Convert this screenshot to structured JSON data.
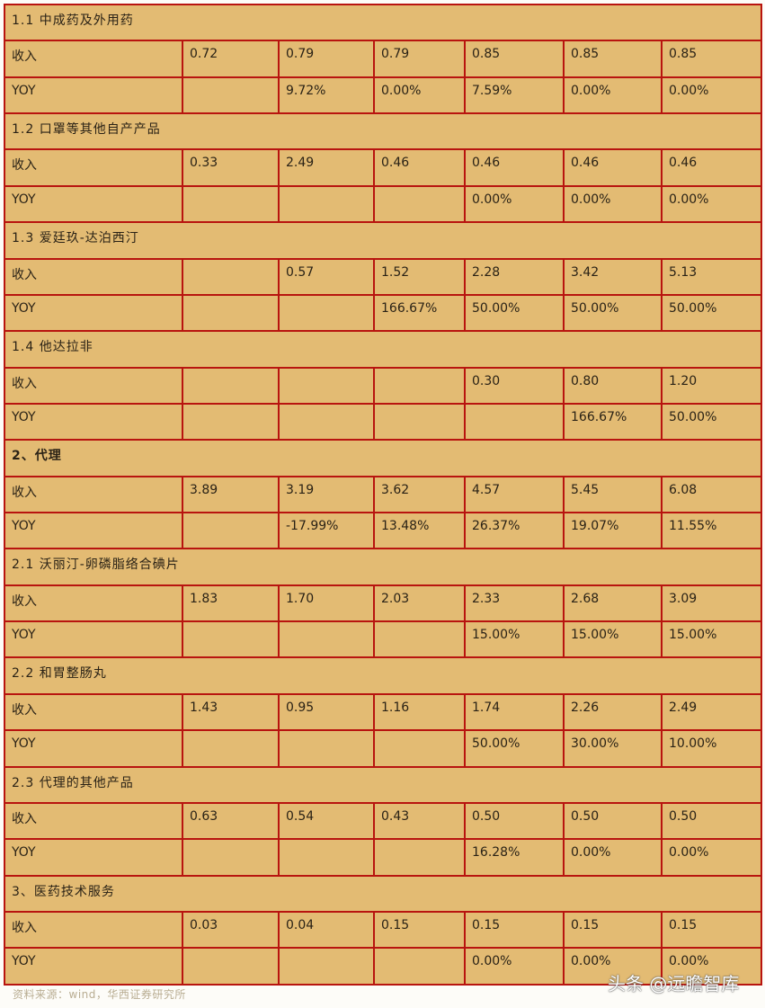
{
  "colors": {
    "cell_background": "#e3bb73",
    "border": "#b8140f"
  },
  "sections": [
    {
      "title": "1.1 中成药及外用药",
      "bold": false,
      "rows": [
        {
          "label": "收入",
          "values": [
            "0.72",
            "0.79",
            "0.79",
            "0.85",
            "0.85",
            "0.85"
          ]
        },
        {
          "label": "YOY",
          "values": [
            "",
            "9.72%",
            "0.00%",
            "7.59%",
            "0.00%",
            "0.00%"
          ]
        }
      ]
    },
    {
      "title": "1.2 口罩等其他自产产品",
      "bold": false,
      "rows": [
        {
          "label": "收入",
          "values": [
            "0.33",
            "2.49",
            "0.46",
            "0.46",
            "0.46",
            "0.46"
          ]
        },
        {
          "label": "YOY",
          "values": [
            "",
            "",
            "",
            "0.00%",
            "0.00%",
            "0.00%"
          ]
        }
      ]
    },
    {
      "title": "1.3 爱廷玖-达泊西汀",
      "bold": false,
      "rows": [
        {
          "label": "收入",
          "values": [
            "",
            "0.57",
            "1.52",
            "2.28",
            "3.42",
            "5.13"
          ]
        },
        {
          "label": "YOY",
          "values": [
            "",
            "",
            "166.67%",
            "50.00%",
            "50.00%",
            "50.00%"
          ]
        }
      ]
    },
    {
      "title": "1.4 他达拉非",
      "bold": false,
      "rows": [
        {
          "label": "收入",
          "values": [
            "",
            "",
            "",
            "0.30",
            "0.80",
            "1.20"
          ]
        },
        {
          "label": "YOY",
          "values": [
            "",
            "",
            "",
            "",
            "166.67%",
            "50.00%"
          ]
        }
      ]
    },
    {
      "title": "2、代理",
      "bold": true,
      "rows": [
        {
          "label": "收入",
          "values": [
            "3.89",
            "3.19",
            "3.62",
            "4.57",
            "5.45",
            "6.08"
          ]
        },
        {
          "label": "YOY",
          "values": [
            "",
            "-17.99%",
            "13.48%",
            "26.37%",
            "19.07%",
            "11.55%"
          ]
        }
      ]
    },
    {
      "title": "2.1 沃丽汀-卵磷脂络合碘片",
      "bold": false,
      "rows": [
        {
          "label": "收入",
          "values": [
            "1.83",
            "1.70",
            "2.03",
            "2.33",
            "2.68",
            "3.09"
          ]
        },
        {
          "label": "YOY",
          "values": [
            "",
            "",
            "",
            "15.00%",
            "15.00%",
            "15.00%"
          ]
        }
      ]
    },
    {
      "title": "2.2 和胃整肠丸",
      "bold": false,
      "rows": [
        {
          "label": "收入",
          "values": [
            "1.43",
            "0.95",
            "1.16",
            "1.74",
            "2.26",
            "2.49"
          ]
        },
        {
          "label": "YOY",
          "values": [
            "",
            "",
            "",
            "50.00%",
            "30.00%",
            "10.00%"
          ]
        }
      ]
    },
    {
      "title": "2.3 代理的其他产品",
      "bold": false,
      "rows": [
        {
          "label": "收入",
          "values": [
            "0.63",
            "0.54",
            "0.43",
            "0.50",
            "0.50",
            "0.50"
          ]
        },
        {
          "label": "YOY",
          "values": [
            "",
            "",
            "",
            "16.28%",
            "0.00%",
            "0.00%"
          ]
        }
      ]
    },
    {
      "title": "3、医药技术服务",
      "bold": false,
      "rows": [
        {
          "label": "收入",
          "values": [
            "0.03",
            "0.04",
            "0.15",
            "0.15",
            "0.15",
            "0.15"
          ]
        },
        {
          "label": "YOY",
          "values": [
            "",
            "",
            "",
            "0.00%",
            "0.00%",
            "0.00%"
          ]
        }
      ]
    }
  ],
  "source": "资料来源：wind，华西证券研究所",
  "watermark": "头条 @远瞻智库"
}
